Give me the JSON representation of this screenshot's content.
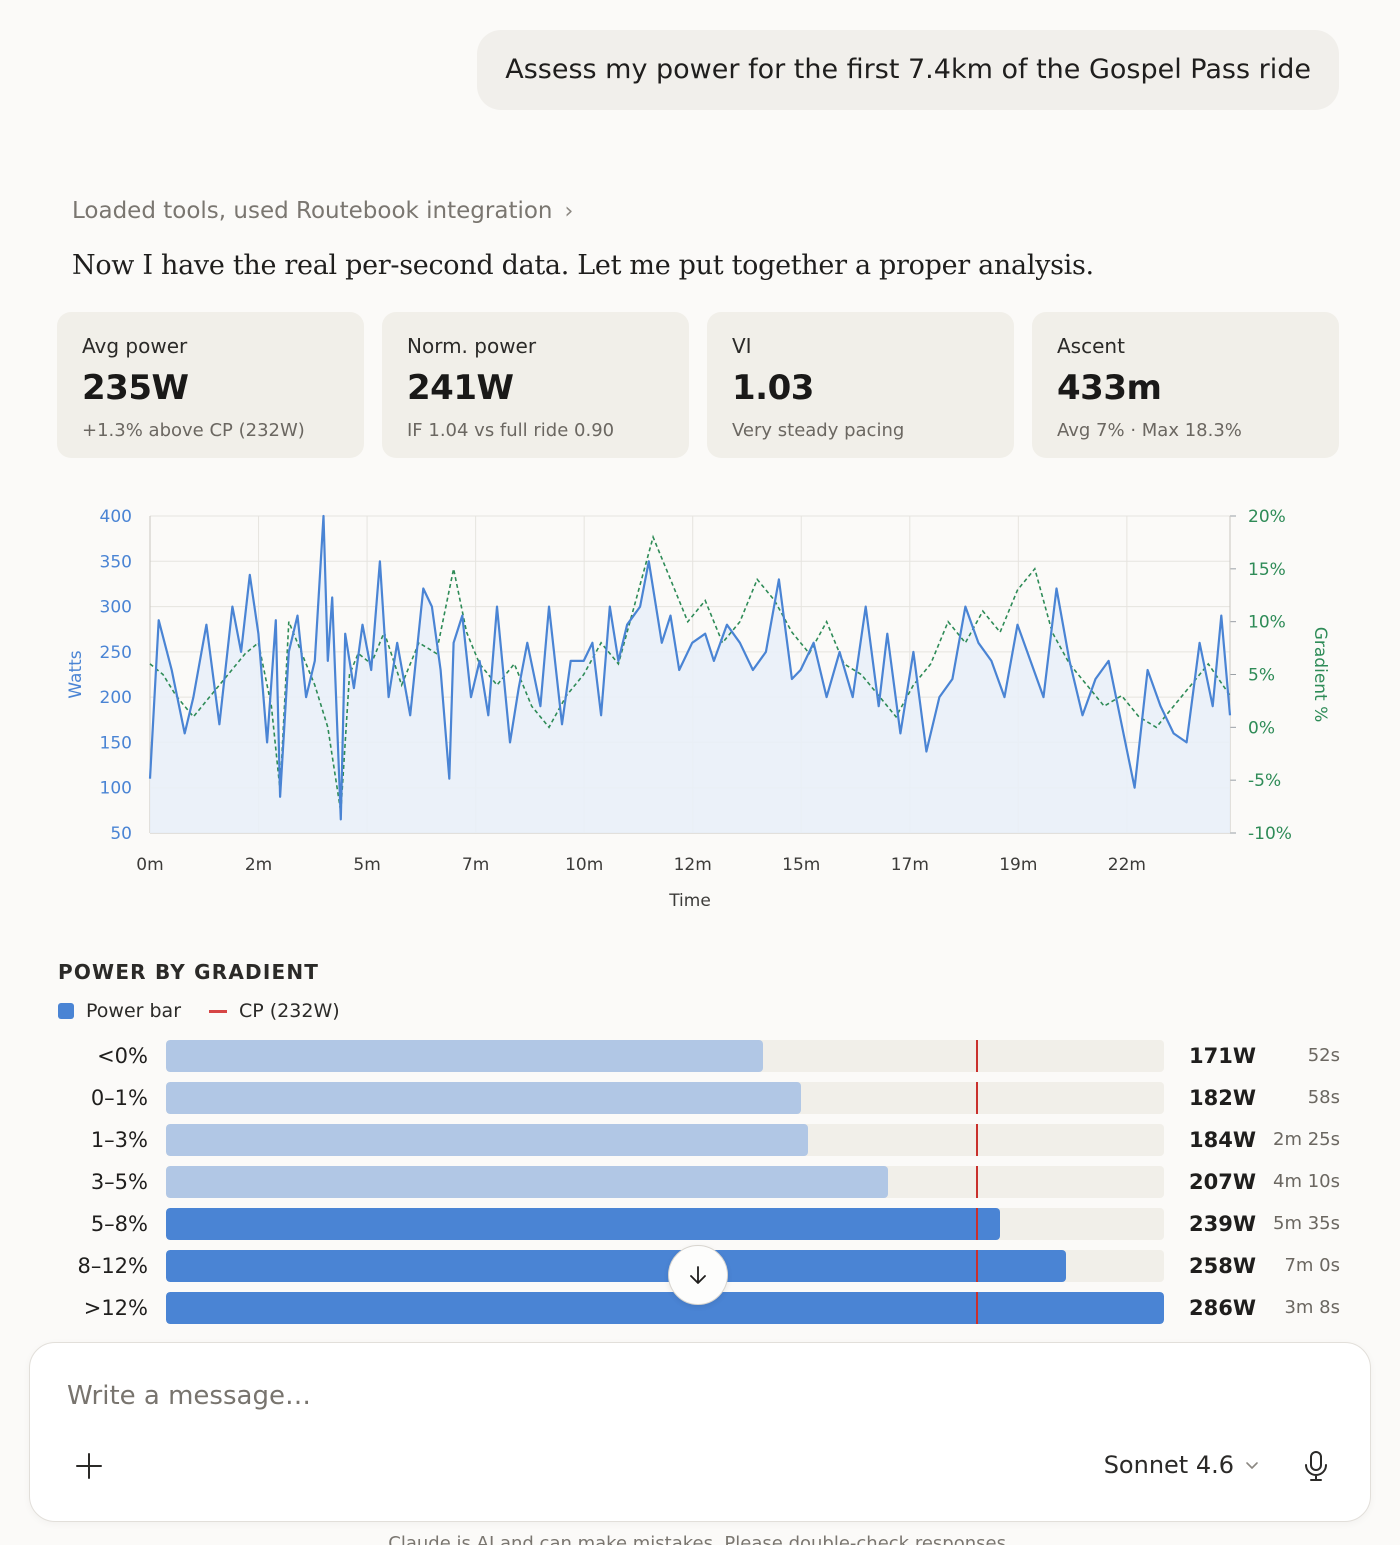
{
  "user_message": "Assess my power for the first 7.4km of the Gospel Pass ride",
  "tools_line": "Loaded tools, used Routebook integration",
  "assistant_text": "Now I have the real per-second data. Let me put together a proper analysis.",
  "stats": [
    {
      "label": "Avg power",
      "value": "235W",
      "sub": "+1.3% above CP (232W)"
    },
    {
      "label": "Norm. power",
      "value": "241W",
      "sub": "IF 1.04 vs full ride 0.90"
    },
    {
      "label": "VI",
      "value": "1.03",
      "sub": "Very steady pacing"
    },
    {
      "label": "Ascent",
      "value": "433m",
      "sub": "Avg 7% · Max 18.3%"
    }
  ],
  "chart_data": {
    "type": "line",
    "xlabel": "Time",
    "ylabel": "Watts",
    "ylabel_right": "Gradient %",
    "x_ticks": [
      "0m",
      "2m",
      "5m",
      "7m",
      "10m",
      "12m",
      "15m",
      "17m",
      "19m",
      "22m"
    ],
    "x_range_min": [
      0,
      24.9
    ],
    "y_ticks": [
      "400",
      "350",
      "300",
      "250",
      "200",
      "150",
      "100",
      "50"
    ],
    "y_right_ticks": [
      "20%",
      "15%",
      "10%",
      "5%",
      "0%",
      "-5%",
      "-10%"
    ],
    "ylim": [
      50,
      400
    ],
    "ylim_right": [
      -10,
      20
    ],
    "grid": true,
    "colors": {
      "power": "#4a84d4",
      "gradient": "#2e8b57",
      "area": "#e9f0f8"
    },
    "power_x": [
      0,
      0.2,
      0.5,
      0.8,
      1.0,
      1.3,
      1.6,
      1.9,
      2.1,
      2.3,
      2.5,
      2.7,
      2.9,
      3.0,
      3.2,
      3.4,
      3.6,
      3.8,
      4.0,
      4.1,
      4.2,
      4.4,
      4.5,
      4.7,
      4.9,
      5.1,
      5.3,
      5.5,
      5.7,
      6.0,
      6.3,
      6.5,
      6.7,
      6.9,
      7.0,
      7.2,
      7.4,
      7.6,
      7.8,
      8.0,
      8.3,
      8.5,
      8.7,
      9.0,
      9.2,
      9.5,
      9.7,
      10.0,
      10.2,
      10.4,
      10.6,
      10.8,
      11.0,
      11.3,
      11.5,
      11.8,
      12.0,
      12.2,
      12.5,
      12.8,
      13.0,
      13.3,
      13.6,
      13.9,
      14.2,
      14.5,
      14.8,
      15.0,
      15.3,
      15.6,
      15.9,
      16.2,
      16.5,
      16.8,
      17.0,
      17.3,
      17.6,
      17.9,
      18.2,
      18.5,
      18.8,
      19.1,
      19.4,
      19.7,
      20.0,
      20.3,
      20.6,
      20.9,
      21.2,
      21.5,
      21.8,
      22.1,
      22.4,
      22.7,
      23.0,
      23.3,
      23.6,
      23.9,
      24.2,
      24.5,
      24.7,
      24.9
    ],
    "power_y": [
      110,
      285,
      230,
      160,
      200,
      280,
      170,
      300,
      250,
      335,
      270,
      150,
      285,
      90,
      250,
      290,
      200,
      240,
      400,
      240,
      310,
      65,
      270,
      210,
      280,
      230,
      350,
      200,
      260,
      180,
      320,
      300,
      230,
      110,
      260,
      290,
      200,
      240,
      180,
      300,
      150,
      210,
      260,
      190,
      300,
      170,
      240,
      240,
      260,
      180,
      300,
      240,
      280,
      300,
      350,
      260,
      290,
      230,
      260,
      270,
      240,
      280,
      260,
      230,
      250,
      330,
      220,
      230,
      260,
      200,
      250,
      200,
      300,
      190,
      270,
      160,
      250,
      140,
      200,
      220,
      300,
      260,
      240,
      200,
      280,
      240,
      200,
      320,
      240,
      180,
      220,
      240,
      170,
      100,
      230,
      190,
      160,
      150,
      260,
      190,
      290,
      180
    ],
    "gradient_x": [
      0,
      0.3,
      0.6,
      1.0,
      1.4,
      1.8,
      2.2,
      2.5,
      2.8,
      3.0,
      3.2,
      3.5,
      3.8,
      4.1,
      4.4,
      4.6,
      4.8,
      5.1,
      5.4,
      5.8,
      6.2,
      6.6,
      7.0,
      7.3,
      7.6,
      8.0,
      8.4,
      8.8,
      9.2,
      9.6,
      10.0,
      10.4,
      10.8,
      11.2,
      11.6,
      12.0,
      12.4,
      12.8,
      13.2,
      13.6,
      14.0,
      14.4,
      14.8,
      15.2,
      15.6,
      16.0,
      16.4,
      16.8,
      17.2,
      17.6,
      18.0,
      18.4,
      18.8,
      19.2,
      19.6,
      20.0,
      20.4,
      20.8,
      21.2,
      21.6,
      22.0,
      22.4,
      22.8,
      23.2,
      23.6,
      24.0,
      24.4,
      24.9
    ],
    "gradient_y": [
      6,
      5,
      3,
      1,
      3,
      5,
      7,
      8,
      2,
      -6,
      10,
      7,
      4,
      0,
      -8,
      5,
      7,
      6,
      9,
      4,
      8,
      7,
      15,
      9,
      6,
      4,
      6,
      2,
      0,
      3,
      5,
      8,
      6,
      12,
      18,
      14,
      10,
      12,
      8,
      10,
      14,
      12,
      9,
      7,
      10,
      6,
      5,
      3,
      1,
      4,
      6,
      10,
      8,
      11,
      9,
      13,
      15,
      9,
      6,
      4,
      2,
      3,
      1,
      0,
      2,
      4,
      6,
      3
    ]
  },
  "power_by_gradient": {
    "title": "POWER BY GRADIENT",
    "legend": {
      "power": "Power bar",
      "cp": "CP (232W)"
    },
    "cp_watts": 232,
    "scale_max_watts": 286,
    "colors": {
      "low": "#b1c7e5",
      "high": "#4a84d4",
      "cp": "#c9302c"
    },
    "rows": [
      {
        "label": "<0%",
        "watts": 171,
        "watts_text": "171W",
        "duration": "52s",
        "above": false
      },
      {
        "label": "0–1%",
        "watts": 182,
        "watts_text": "182W",
        "duration": "58s",
        "above": false
      },
      {
        "label": "1–3%",
        "watts": 184,
        "watts_text": "184W",
        "duration": "2m 25s",
        "above": false
      },
      {
        "label": "3–5%",
        "watts": 207,
        "watts_text": "207W",
        "duration": "4m 10s",
        "above": false
      },
      {
        "label": "5–8%",
        "watts": 239,
        "watts_text": "239W",
        "duration": "5m 35s",
        "above": true
      },
      {
        "label": "8–12%",
        "watts": 258,
        "watts_text": "258W",
        "duration": "7m 0s",
        "above": true
      },
      {
        "label": ">12%",
        "watts": 286,
        "watts_text": "286W",
        "duration": "3m 8s",
        "above": true
      }
    ]
  },
  "icons": {
    "scroll": "arrow-down-icon",
    "add": "plus-icon",
    "model_chevron": "chevron-down-icon",
    "mic": "microphone-icon",
    "tools_chevron": "chevron-right-icon"
  },
  "composer": {
    "placeholder": "Write a message…",
    "model": "Sonnet 4.6"
  },
  "disclaimer": "Claude is AI and can make mistakes. Please double-check responses."
}
